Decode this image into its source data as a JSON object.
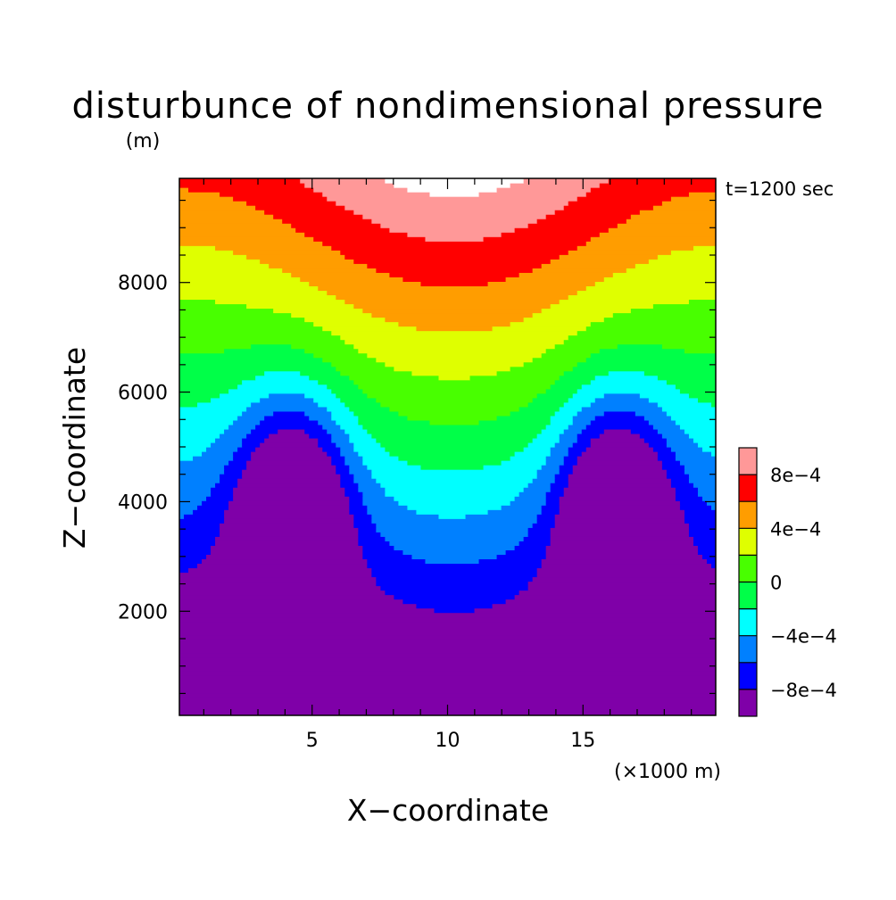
{
  "chart_data": {
    "type": "heatmap",
    "title": "disturbunce of nondimensional pressure",
    "title_unit": "(m)",
    "annotation": "t=1200 sec",
    "xlabel": "X−coordinate",
    "xunit": "(×1000 m)",
    "ylabel": "Z−coordinate",
    "x_ticks": [
      5,
      10,
      15
    ],
    "x_tick_labels": [
      "5",
      "10",
      "15"
    ],
    "y_ticks": [
      2000,
      4000,
      6000,
      8000
    ],
    "y_tick_labels": [
      "2000",
      "4000",
      "6000",
      "8000"
    ],
    "xlim": [
      0.1,
      19.9
    ],
    "ylim": [
      100,
      9900
    ],
    "colorbar": {
      "levels": [
        -0.001,
        -0.0008,
        -0.0006,
        -0.0004,
        -0.0002,
        0,
        0.0002,
        0.0004,
        0.0006,
        0.0008,
        0.001
      ],
      "colors": [
        "#7f00a8",
        "#0000ff",
        "#0080ff",
        "#00ffff",
        "#00ff48",
        "#48ff00",
        "#dfff00",
        "#ff9d00",
        "#ff0000",
        "#ff9898"
      ],
      "above_color": "#ffffff",
      "labels": [
        {
          "text": "8e−4",
          "value": 0.0008
        },
        {
          "text": "4e−4",
          "value": 0.0004
        },
        {
          "text": "0",
          "value": 0
        },
        {
          "text": "−4e−4",
          "value": -0.0004
        },
        {
          "text": "−8e−4",
          "value": -0.0008
        }
      ]
    }
  }
}
